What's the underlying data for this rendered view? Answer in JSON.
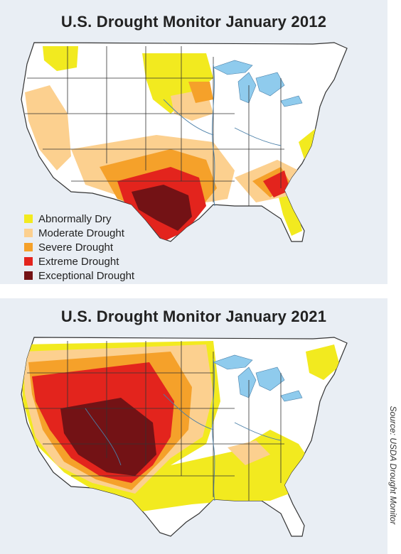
{
  "maps": [
    {
      "title": "U.S. Drought Monitor January 2012"
    },
    {
      "title": "U.S. Drought Monitor January 2021"
    }
  ],
  "legend": [
    {
      "label": "Abnormally Dry",
      "color": "#f2ea1f"
    },
    {
      "label": "Moderate Drought",
      "color": "#fcd08f"
    },
    {
      "label": "Severe Drought",
      "color": "#f5a12a"
    },
    {
      "label": "Extreme Drought",
      "color": "#e3241d"
    },
    {
      "label": "Exceptional Drought",
      "color": "#731215"
    }
  ],
  "source": "Source: USDA Drought Monitor",
  "colors": {
    "water": "#8fcbed",
    "land": "#ffffff",
    "state_border": "#333333",
    "panel_background": "#e9eef4"
  }
}
